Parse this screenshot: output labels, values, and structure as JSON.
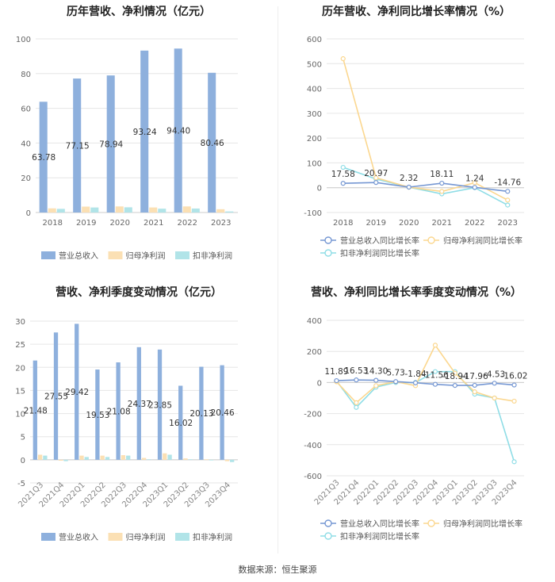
{
  "source": "数据来源：恒生聚源",
  "colors": {
    "revenue": "#8eb0dd",
    "net": "#fbe0b4",
    "deducted": "#b1e4e8",
    "line1": "#7597d3",
    "line2": "#fbd78f",
    "line3": "#8fdde6"
  },
  "chart_data": [
    {
      "type": "bar",
      "title": "历年营收、净利情况（亿元）",
      "categories": [
        "2018",
        "2019",
        "2020",
        "2021",
        "2022",
        "2023"
      ],
      "ylim": [
        0,
        100
      ],
      "yticks": [
        "0",
        "20",
        "40",
        "60",
        "80",
        "100"
      ],
      "series": [
        {
          "name": "营业总收入",
          "values": [
            63.78,
            77.15,
            78.94,
            93.24,
            94.4,
            80.46
          ],
          "labels": [
            "63.78",
            "77.15",
            "78.94",
            "93.24",
            "94.40",
            "80.46"
          ]
        },
        {
          "name": "归母净利润",
          "values": [
            2.4,
            3.4,
            3.5,
            2.9,
            3.5,
            1.9
          ]
        },
        {
          "name": "扣非净利润",
          "values": [
            2.1,
            2.9,
            3.0,
            2.2,
            2.3,
            0.6
          ]
        }
      ],
      "legend": "bottom"
    },
    {
      "type": "line",
      "title": "历年营收、净利同比增长率情况（%）",
      "categories": [
        "2018",
        "2019",
        "2020",
        "2021",
        "2022",
        "2023"
      ],
      "ylim": [
        -100,
        600
      ],
      "yticks": [
        "-100",
        "0",
        "100",
        "200",
        "300",
        "400",
        "500",
        "600"
      ],
      "series": [
        {
          "name": "营业总收入同比增长率",
          "values": [
            17.58,
            20.97,
            2.32,
            18.11,
            1.24,
            -14.76
          ],
          "labels": [
            "17.58",
            "20.97",
            "2.32",
            "18.11",
            "1.24",
            "-14.76"
          ]
        },
        {
          "name": "归母净利润同比增长率",
          "values": [
            520,
            40,
            2,
            -15,
            20,
            -50
          ]
        },
        {
          "name": "扣非净利润同比增长率",
          "values": [
            82,
            35,
            2,
            -25,
            0,
            -70
          ]
        }
      ],
      "legend": "bottom"
    },
    {
      "type": "bar",
      "title": "营收、净利季度变动情况（亿元）",
      "categories": [
        "2021Q3",
        "2021Q4",
        "2022Q1",
        "2022Q2",
        "2022Q3",
        "2022Q4",
        "2023Q1",
        "2023Q2",
        "2023Q3",
        "2023Q4"
      ],
      "ylim": [
        -5,
        30
      ],
      "yticks": [
        "-5",
        "0",
        "5",
        "10",
        "15",
        "20",
        "25",
        "30"
      ],
      "series": [
        {
          "name": "营业总收入",
          "values": [
            21.48,
            27.55,
            29.42,
            19.53,
            21.08,
            24.37,
            23.85,
            16.02,
            20.13,
            20.46
          ],
          "labels": [
            "21.48",
            "27.55",
            "29.42",
            "19.53",
            "21.08",
            "24.37",
            "23.85",
            "16.02",
            "20.13",
            "20.46"
          ]
        },
        {
          "name": "归母净利润",
          "values": [
            1.1,
            -0.2,
            0.9,
            0.9,
            1.0,
            0.4,
            1.4,
            0.3,
            0.1,
            -0.3
          ]
        },
        {
          "name": "扣非净利润",
          "values": [
            0.9,
            -0.3,
            0.6,
            0.6,
            0.9,
            0.1,
            1.1,
            0.1,
            0.0,
            -0.5
          ]
        }
      ],
      "legend": "bottom"
    },
    {
      "type": "line",
      "title": "营收、净利同比增长率季度变动情况（%）",
      "categories": [
        "2021Q3",
        "2021Q4",
        "2022Q1",
        "2022Q2",
        "2022Q3",
        "2022Q4",
        "2023Q1",
        "2023Q2",
        "2023Q3",
        "2023Q4"
      ],
      "ylim": [
        -600,
        400
      ],
      "yticks": [
        "-600",
        "-400",
        "-200",
        "0",
        "200",
        "400"
      ],
      "series": [
        {
          "name": "营业总收入同比增长率",
          "values": [
            11.89,
            16.53,
            14.3,
            5.73,
            -1.84,
            -11.56,
            -18.94,
            -17.96,
            -4.53,
            -16.02
          ],
          "labels": [
            "11.89",
            "16.53",
            "14.30",
            "5.73",
            "-1.84",
            "-11.56",
            "-18.94",
            "-17.96",
            "-4.53",
            "-16.02"
          ]
        },
        {
          "name": "归母净利润同比增长率",
          "values": [
            5,
            -130,
            -20,
            5,
            -20,
            240,
            60,
            -60,
            -100,
            -120
          ]
        },
        {
          "name": "扣非净利润同比增长率",
          "values": [
            10,
            -160,
            -30,
            0,
            0,
            70,
            70,
            -75,
            -100,
            -510
          ]
        }
      ],
      "legend": "bottom"
    }
  ]
}
